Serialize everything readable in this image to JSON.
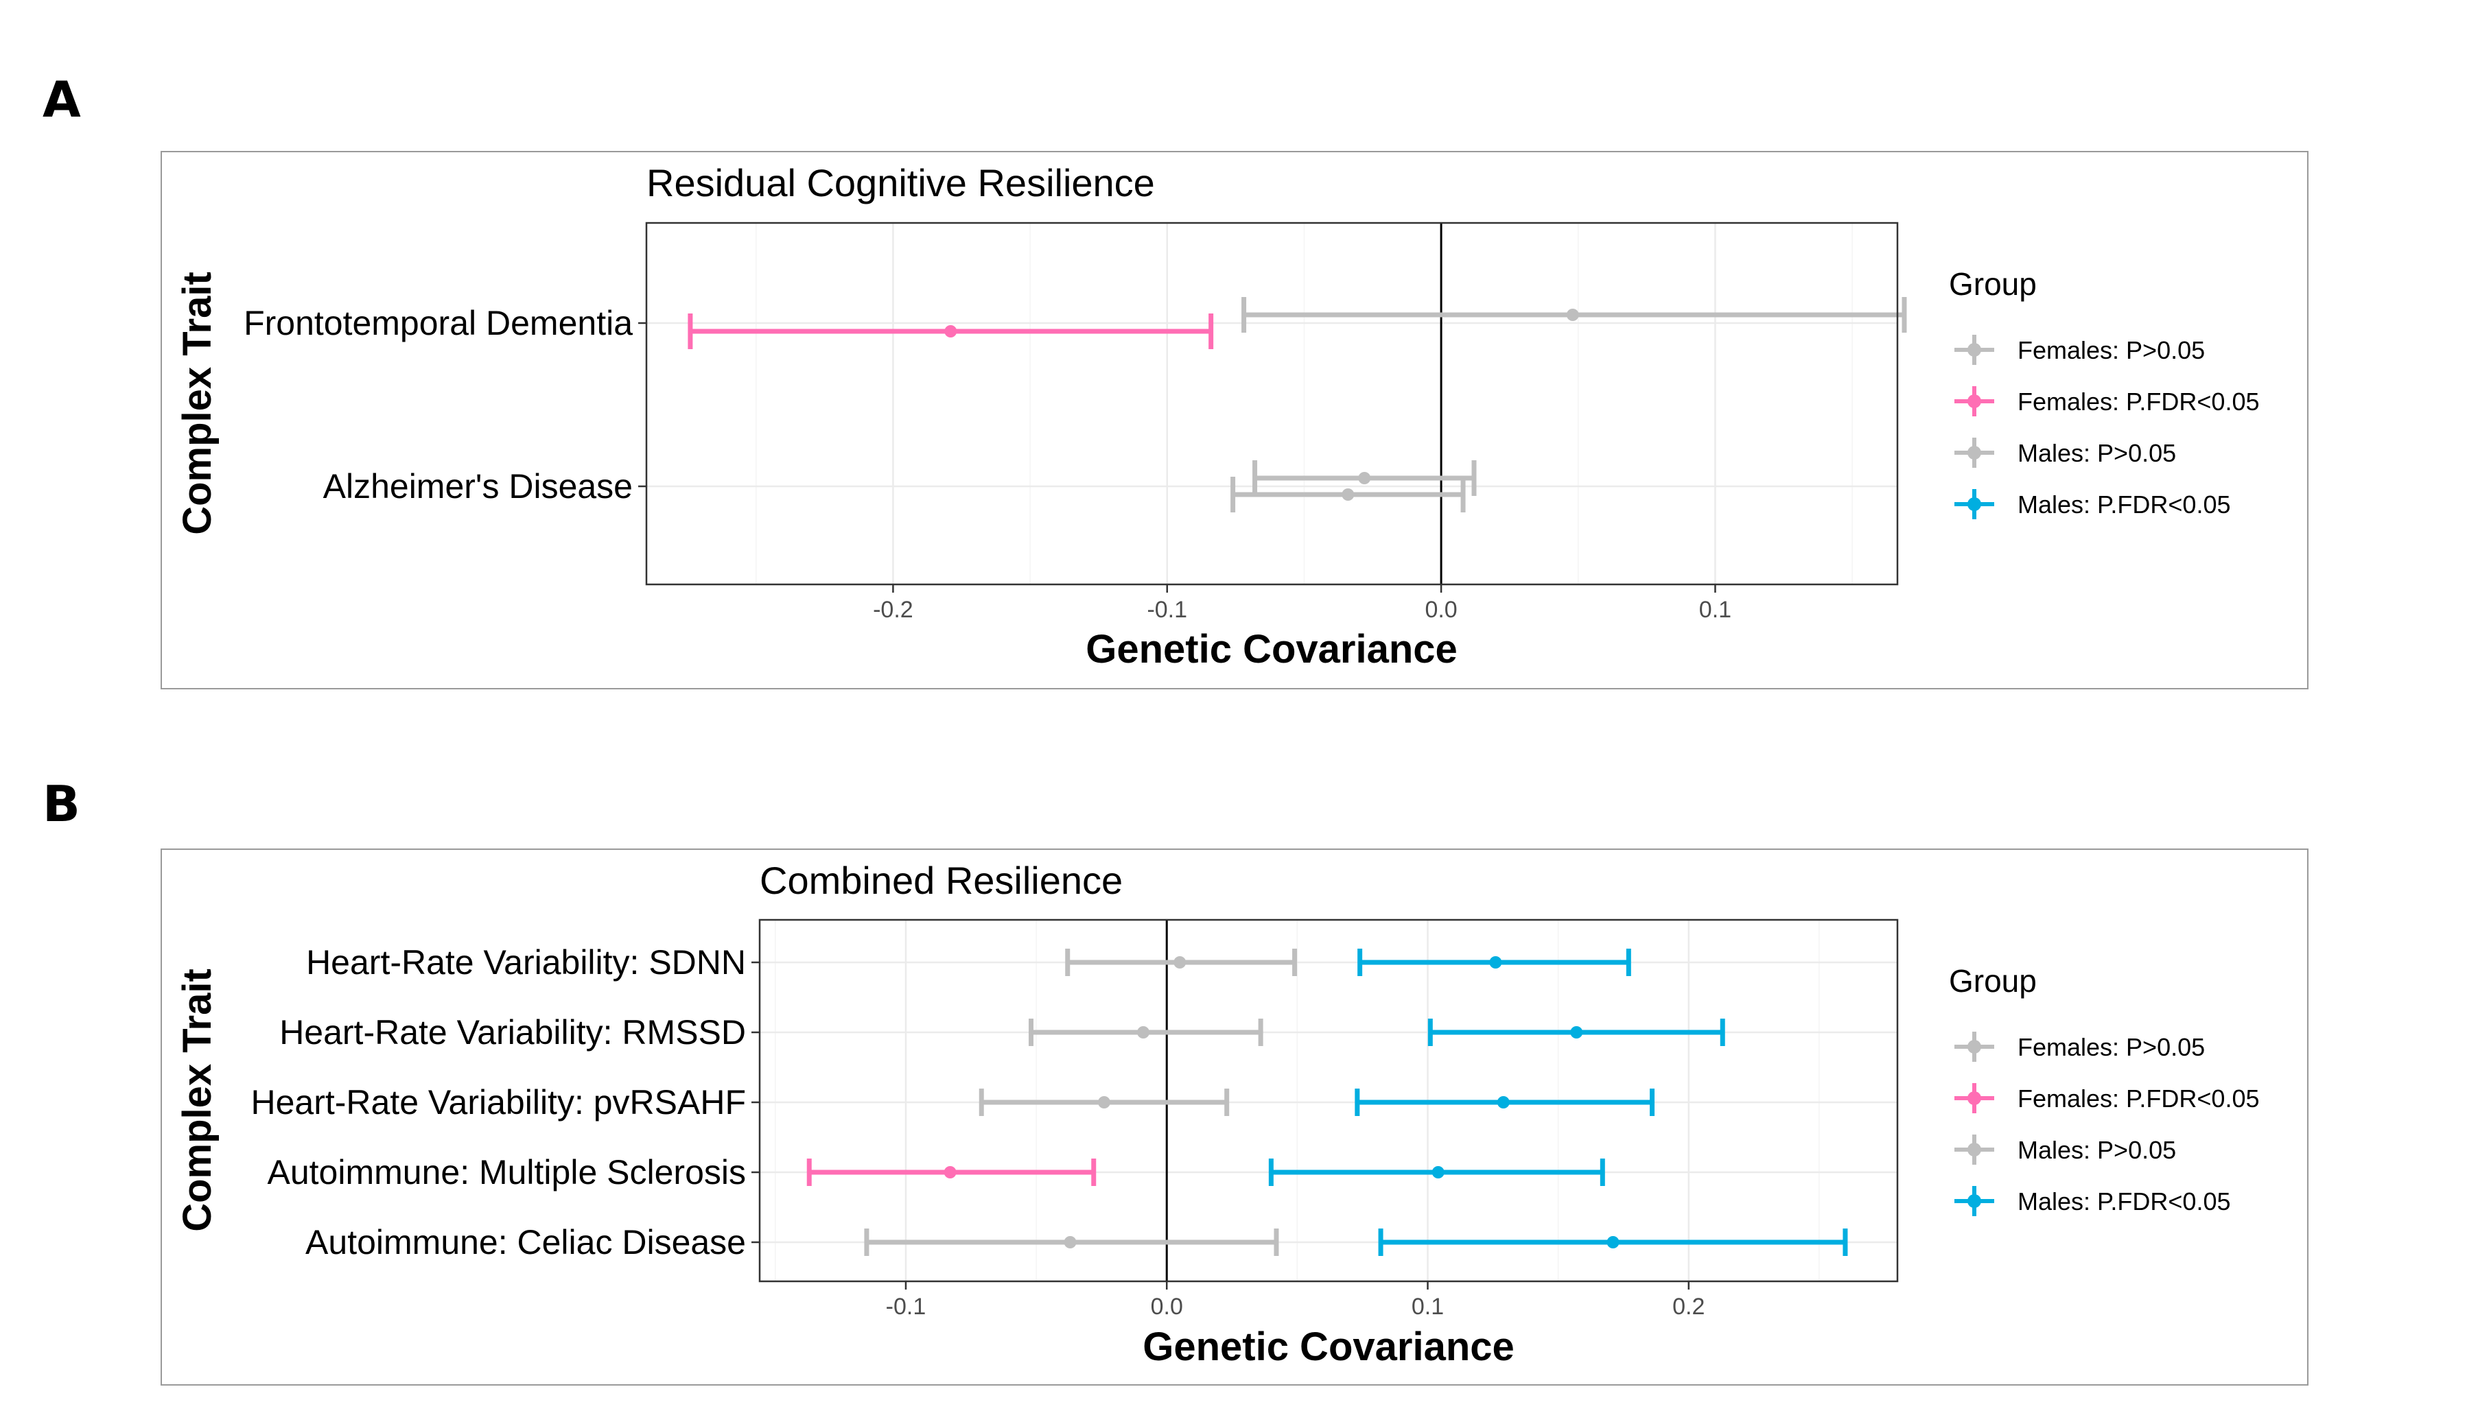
{
  "colors": {
    "Females: P>0.05": "#bebebe",
    "Females: P.FDR<0.05": "#ff6eb4",
    "Males: P>0.05": "#bebebe",
    "Males: P.FDR<0.05": "#00aee0"
  },
  "legend": {
    "title": "Group",
    "items": [
      "Females: P>0.05",
      "Females: P.FDR<0.05",
      "Males: P>0.05",
      "Males: P.FDR<0.05"
    ]
  },
  "chart_data": [
    {
      "type": "forest",
      "panel_label": "A",
      "title": "Residual Cognitive Resilience",
      "xlabel": "Genetic Covariance",
      "ylabel": "Complex Trait",
      "xlim": [
        -0.29,
        0.1665
      ],
      "xticks": [
        "-0.2",
        "-0.1",
        "0.0",
        "0.1"
      ],
      "xtick_values": [
        -0.2,
        -0.1,
        0.0,
        0.1
      ],
      "categories": [
        "Frontotemporal Dementia",
        "Alzheimer's Disease"
      ],
      "grid": true,
      "legend_position": "right",
      "points": [
        {
          "category": "Frontotemporal Dementia",
          "group": "Females: P.FDR<0.05",
          "estimate": -0.179,
          "lower": -0.274,
          "upper": -0.084
        },
        {
          "category": "Frontotemporal Dementia",
          "group": "Males: P>0.05",
          "estimate": 0.048,
          "lower": -0.072,
          "upper": 0.169
        },
        {
          "category": "Alzheimer's Disease",
          "group": "Females: P>0.05",
          "estimate": -0.034,
          "lower": -0.076,
          "upper": 0.008
        },
        {
          "category": "Alzheimer's Disease",
          "group": "Males: P>0.05",
          "estimate": -0.028,
          "lower": -0.068,
          "upper": 0.012
        }
      ]
    },
    {
      "type": "forest",
      "panel_label": "B",
      "title": "Combined Resilience",
      "xlabel": "Genetic Covariance",
      "ylabel": "Complex Trait",
      "xlim": [
        -0.156,
        0.28
      ],
      "xticks": [
        "-0.1",
        "0.0",
        "0.1",
        "0.2"
      ],
      "xtick_values": [
        -0.1,
        0.0,
        0.1,
        0.2
      ],
      "categories": [
        "Heart-Rate Variability: SDNN",
        "Heart-Rate Variability: RMSSD",
        "Heart-Rate Variability: pvRSAHF",
        "Autoimmune: Multiple Sclerosis",
        "Autoimmune: Celiac Disease"
      ],
      "grid": true,
      "legend_position": "right",
      "points": [
        {
          "category": "Heart-Rate Variability: SDNN",
          "group": "Females: P>0.05",
          "estimate": 0.005,
          "lower": -0.038,
          "upper": 0.049
        },
        {
          "category": "Heart-Rate Variability: SDNN",
          "group": "Males: P.FDR<0.05",
          "estimate": 0.126,
          "lower": 0.074,
          "upper": 0.177
        },
        {
          "category": "Heart-Rate Variability: RMSSD",
          "group": "Females: P>0.05",
          "estimate": -0.009,
          "lower": -0.052,
          "upper": 0.036
        },
        {
          "category": "Heart-Rate Variability: RMSSD",
          "group": "Males: P.FDR<0.05",
          "estimate": 0.157,
          "lower": 0.101,
          "upper": 0.213
        },
        {
          "category": "Heart-Rate Variability: pvRSAHF",
          "group": "Females: P>0.05",
          "estimate": -0.024,
          "lower": -0.071,
          "upper": 0.023
        },
        {
          "category": "Heart-Rate Variability: pvRSAHF",
          "group": "Males: P.FDR<0.05",
          "estimate": 0.129,
          "lower": 0.073,
          "upper": 0.186
        },
        {
          "category": "Autoimmune: Multiple Sclerosis",
          "group": "Females: P.FDR<0.05",
          "estimate": -0.083,
          "lower": -0.137,
          "upper": -0.028
        },
        {
          "category": "Autoimmune: Multiple Sclerosis",
          "group": "Males: P.FDR<0.05",
          "estimate": 0.104,
          "lower": 0.04,
          "upper": 0.167
        },
        {
          "category": "Autoimmune: Celiac Disease",
          "group": "Females: P>0.05",
          "estimate": -0.037,
          "lower": -0.115,
          "upper": 0.042
        },
        {
          "category": "Autoimmune: Celiac Disease",
          "group": "Males: P.FDR<0.05",
          "estimate": 0.171,
          "lower": 0.082,
          "upper": 0.26
        }
      ]
    }
  ]
}
